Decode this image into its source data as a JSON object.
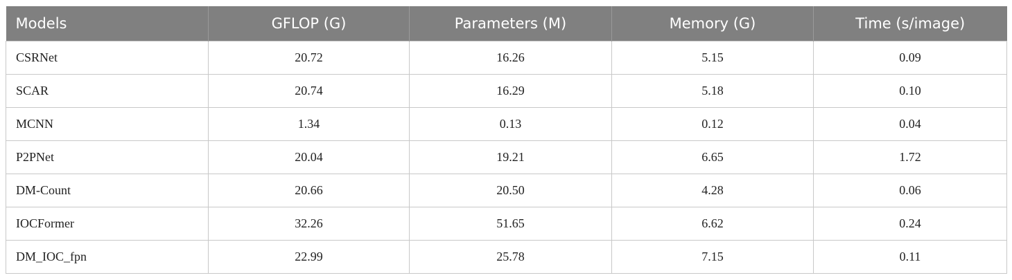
{
  "table": {
    "header": [
      "Models",
      "GFLOP (G)",
      "Parameters (M)",
      "Memory (G)",
      "Time (s/image)"
    ],
    "rows": [
      [
        "CSRNet",
        "20.72",
        "16.26",
        "5.15",
        "0.09"
      ],
      [
        "SCAR",
        "20.74",
        "16.29",
        "5.18",
        "0.10"
      ],
      [
        "MCNN",
        "1.34",
        "0.13",
        "0.12",
        "0.04"
      ],
      [
        "P2PNet",
        "20.04",
        "19.21",
        "6.65",
        "1.72"
      ],
      [
        "DM-Count",
        "20.66",
        "20.50",
        "4.28",
        "0.06"
      ],
      [
        "IOCFormer",
        "32.26",
        "51.65",
        "6.62",
        "0.24"
      ],
      [
        "DM_IOC_fpn",
        "22.99",
        "25.78",
        "7.15",
        "0.11"
      ]
    ]
  }
}
